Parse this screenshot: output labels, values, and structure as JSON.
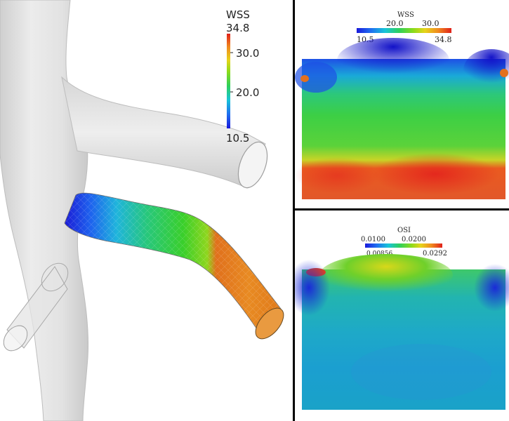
{
  "model_view": {
    "legend": {
      "title": "WSS",
      "max_label": "34.8",
      "ticks": [
        "30.0",
        "20.0"
      ],
      "min_label": "10.5"
    },
    "colors": {
      "vessel": "#e6e6e6",
      "vessel_edge": "#bdbdbd"
    }
  },
  "wss_map": {
    "legend": {
      "title": "WSS",
      "ticks": [
        "20.0",
        "30.0"
      ],
      "min_label": "10.5",
      "max_label": "34.8"
    }
  },
  "osi_map": {
    "legend": {
      "title": "OSI",
      "ticks": [
        "0.0100",
        "0.0200"
      ],
      "min_label": "0.00856",
      "max_label": "0.0292"
    }
  },
  "colormap": [
    "#1a1adb",
    "#1f6ff0",
    "#18c4d8",
    "#2fd05a",
    "#8ddb1a",
    "#e6d41a",
    "#f08a1e",
    "#e0201a"
  ]
}
